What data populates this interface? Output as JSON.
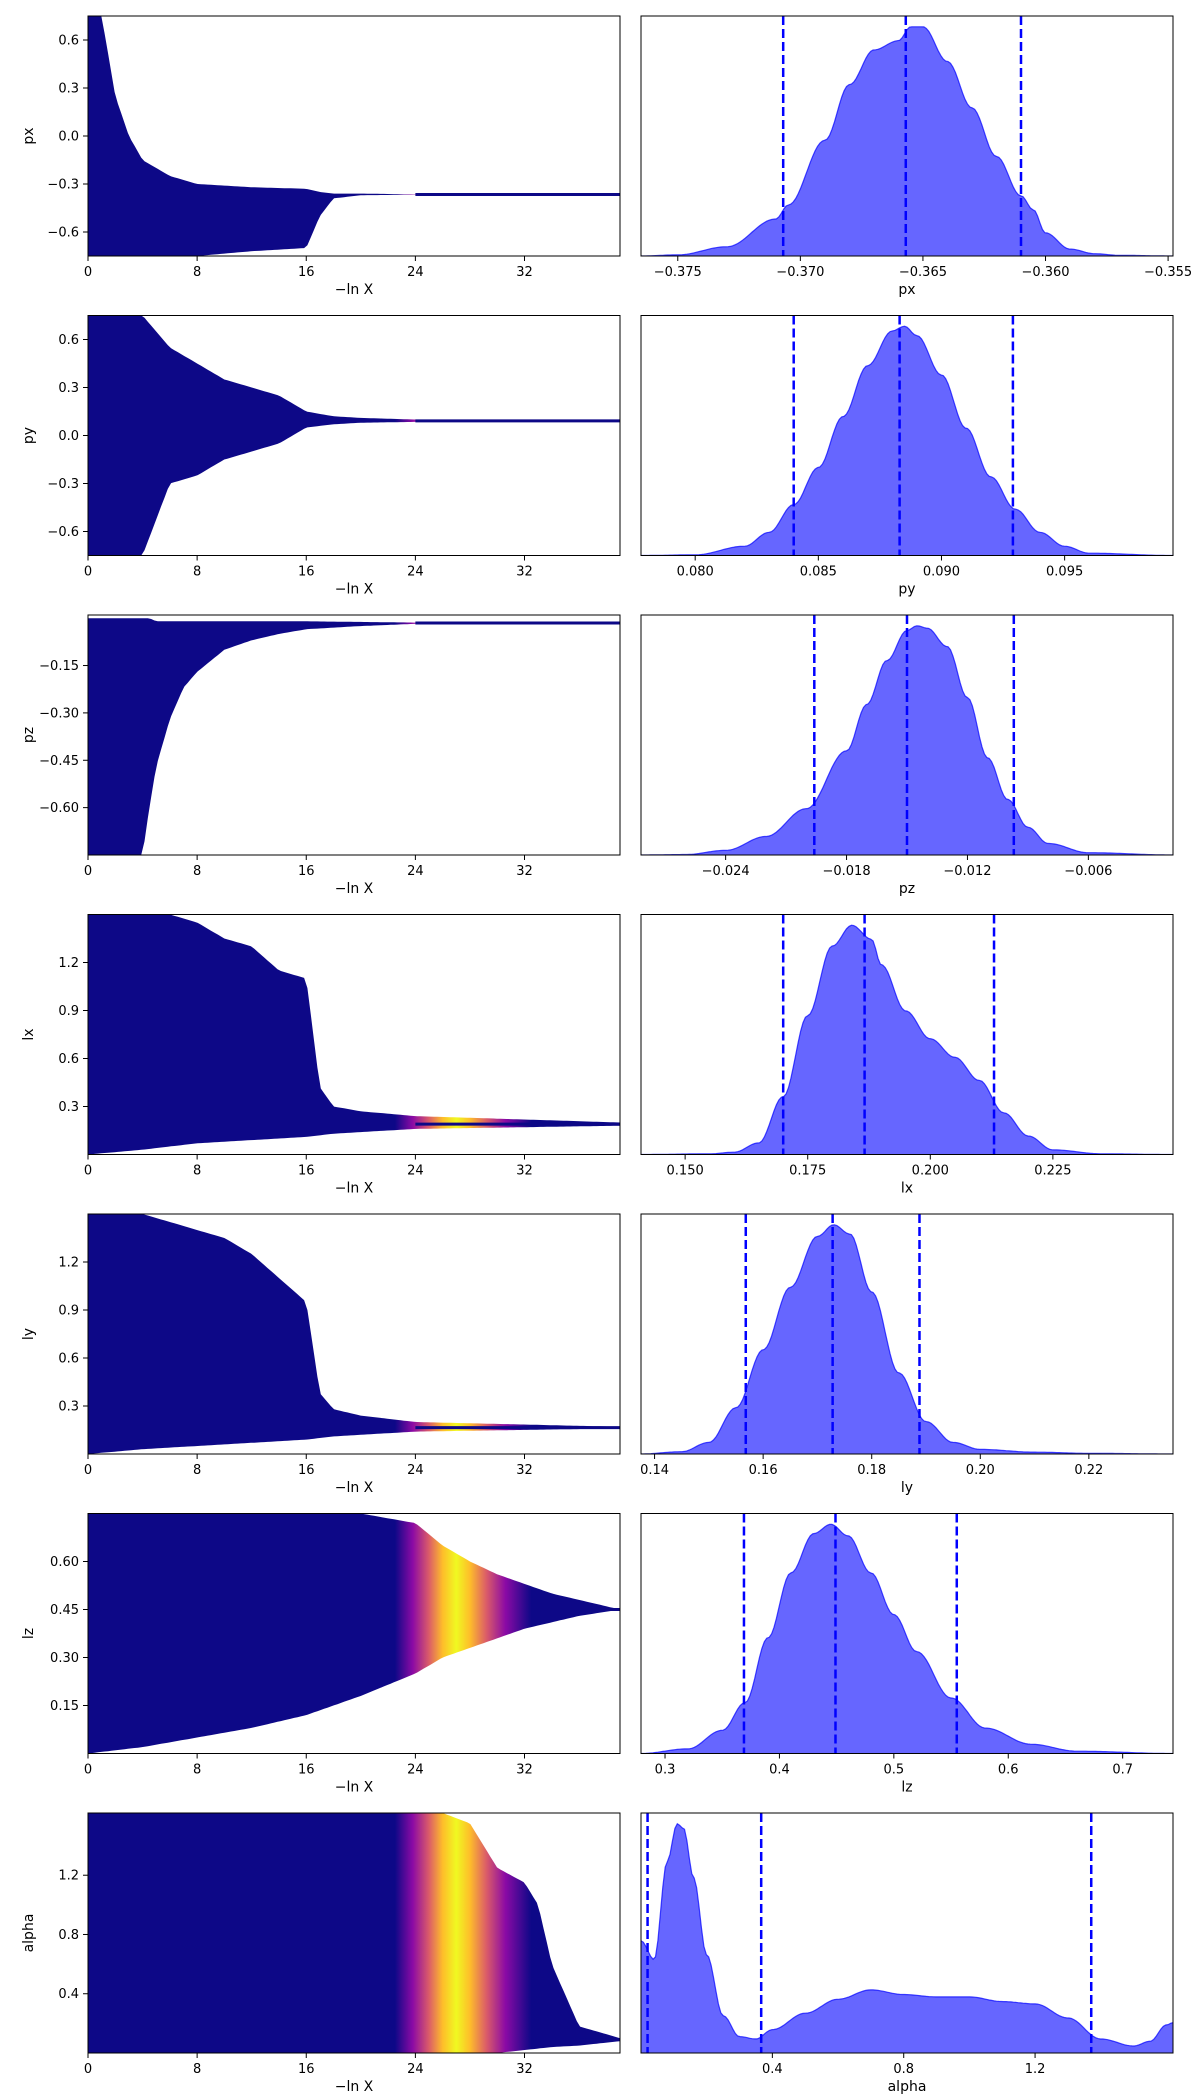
{
  "figure": {
    "background": "#ffffff",
    "trace_colormap": [
      "#0d0887",
      "#5302a3",
      "#8b0aa5",
      "#b83289",
      "#db5c68",
      "#f48849",
      "#febd2a",
      "#f0f921"
    ],
    "posterior_fill": "#0000ff",
    "posterior_fill_opacity": 0.6,
    "quantile_line_color": "#0000ff"
  },
  "chart_data": [
    {
      "type": "scatter",
      "param": "px",
      "xlabel": "−ln X",
      "ylabel": "px",
      "xlim": [
        0,
        39
      ],
      "ylim": [
        -0.75,
        0.75
      ],
      "xticks": [
        0,
        8,
        16,
        24,
        32
      ],
      "xtick_labels": [
        "0",
        "8",
        "16",
        "24",
        "32"
      ],
      "yticks": [
        0.6,
        0.3,
        0.0,
        -0.3,
        -0.6
      ],
      "ytick_labels": [
        "0.6",
        "0.3",
        "0.0",
        "−0.3",
        "−0.6"
      ],
      "envelope": {
        "x": [
          0,
          1,
          1.5,
          2,
          3,
          4,
          6,
          8,
          12,
          16,
          17,
          18,
          20,
          24,
          39
        ],
        "upper": [
          0.75,
          0.75,
          0.5,
          0.25,
          0.0,
          -0.15,
          -0.25,
          -0.3,
          -0.32,
          -0.33,
          -0.35,
          -0.36,
          -0.36,
          -0.365,
          -0.365
        ],
        "lower": [
          -0.75,
          -0.75,
          -0.75,
          -0.75,
          -0.75,
          -0.75,
          -0.75,
          -0.75,
          -0.72,
          -0.7,
          -0.5,
          -0.39,
          -0.37,
          -0.367,
          -0.366
        ]
      },
      "peak_x": 27
    },
    {
      "type": "area",
      "param": "px",
      "xlabel": "px",
      "xlim": [
        -0.3765,
        -0.3548
      ],
      "xticks": [
        -0.375,
        -0.37,
        -0.365,
        -0.36,
        -0.355
      ],
      "xtick_labels": [
        "−0.375",
        "−0.370",
        "−0.365",
        "−0.360",
        "−0.355"
      ],
      "density": {
        "x": [
          -0.3765,
          -0.375,
          -0.373,
          -0.371,
          -0.3705,
          -0.369,
          -0.368,
          -0.367,
          -0.366,
          -0.3655,
          -0.365,
          -0.364,
          -0.363,
          -0.362,
          -0.361,
          -0.3605,
          -0.36,
          -0.359,
          -0.358,
          -0.357,
          -0.3548
        ],
        "y": [
          0.0,
          0.005,
          0.04,
          0.16,
          0.22,
          0.5,
          0.74,
          0.89,
          0.93,
          0.99,
          0.99,
          0.84,
          0.64,
          0.43,
          0.26,
          0.2,
          0.1,
          0.03,
          0.01,
          0.003,
          0.0
        ]
      },
      "quantiles": [
        -0.3707,
        -0.3657,
        -0.361
      ]
    },
    {
      "type": "scatter",
      "param": "py",
      "xlabel": "−ln X",
      "ylabel": "py",
      "xlim": [
        0,
        39
      ],
      "ylim": [
        -0.75,
        0.75
      ],
      "xticks": [
        0,
        8,
        16,
        24,
        32
      ],
      "xtick_labels": [
        "0",
        "8",
        "16",
        "24",
        "32"
      ],
      "yticks": [
        0.6,
        0.3,
        0.0,
        -0.3,
        -0.6
      ],
      "ytick_labels": [
        "0.6",
        "0.3",
        "0.0",
        "−0.3",
        "−0.6"
      ],
      "envelope": {
        "x": [
          0,
          2,
          4,
          6,
          8,
          10,
          12,
          14,
          16,
          18,
          20,
          24,
          39
        ],
        "upper": [
          0.75,
          0.75,
          0.75,
          0.55,
          0.45,
          0.35,
          0.3,
          0.25,
          0.15,
          0.12,
          0.11,
          0.1,
          0.095
        ],
        "lower": [
          -0.75,
          -0.75,
          -0.75,
          -0.3,
          -0.25,
          -0.15,
          -0.1,
          -0.05,
          0.05,
          0.07,
          0.08,
          0.085,
          0.088
        ]
      },
      "peak_x": 27
    },
    {
      "type": "area",
      "param": "py",
      "xlabel": "py",
      "xlim": [
        0.0778,
        0.0994
      ],
      "xticks": [
        0.08,
        0.085,
        0.09,
        0.095
      ],
      "xtick_labels": [
        "0.080",
        "0.085",
        "0.090",
        "0.095"
      ],
      "density": {
        "x": [
          0.0778,
          0.08,
          0.082,
          0.083,
          0.084,
          0.085,
          0.086,
          0.087,
          0.088,
          0.0885,
          0.089,
          0.09,
          0.091,
          0.092,
          0.093,
          0.094,
          0.095,
          0.096,
          0.0994
        ],
        "y": [
          0.0,
          0.003,
          0.04,
          0.1,
          0.22,
          0.38,
          0.6,
          0.82,
          0.97,
          0.99,
          0.95,
          0.78,
          0.55,
          0.34,
          0.2,
          0.1,
          0.04,
          0.01,
          0.0
        ]
      },
      "quantiles": [
        0.084,
        0.0883,
        0.0929
      ]
    },
    {
      "type": "scatter",
      "param": "pz",
      "xlabel": "−ln X",
      "ylabel": "pz",
      "xlim": [
        0,
        39
      ],
      "ylim": [
        -0.75,
        0.01
      ],
      "xticks": [
        0,
        8,
        16,
        24,
        32
      ],
      "xtick_labels": [
        "0",
        "8",
        "16",
        "24",
        "32"
      ],
      "yticks": [
        -0.15,
        -0.3,
        -0.45,
        -0.6
      ],
      "ytick_labels": [
        "−0.15",
        "−0.30",
        "−0.45",
        "−0.60"
      ],
      "envelope": {
        "x": [
          0,
          4,
          4.5,
          5,
          6,
          7,
          8,
          10,
          12,
          14,
          16,
          20,
          24,
          39
        ],
        "upper": [
          0.0,
          0.0,
          0.0,
          -0.01,
          -0.01,
          -0.01,
          -0.01,
          -0.01,
          -0.01,
          -0.01,
          -0.01,
          -0.012,
          -0.014,
          -0.015
        ],
        "lower": [
          -0.75,
          -0.75,
          -0.6,
          -0.47,
          -0.32,
          -0.22,
          -0.17,
          -0.1,
          -0.07,
          -0.05,
          -0.035,
          -0.025,
          -0.018,
          -0.016
        ]
      },
      "peak_x": 27
    },
    {
      "type": "area",
      "param": "pz",
      "xlabel": "pz",
      "xlim": [
        -0.0282,
        -0.0018
      ],
      "xticks": [
        -0.024,
        -0.018,
        -0.012,
        -0.006
      ],
      "xtick_labels": [
        "−0.024",
        "−0.018",
        "−0.012",
        "−0.006"
      ],
      "density": {
        "x": [
          -0.0282,
          -0.026,
          -0.024,
          -0.022,
          -0.02,
          -0.018,
          -0.017,
          -0.016,
          -0.015,
          -0.0145,
          -0.014,
          -0.013,
          -0.012,
          -0.011,
          -0.01,
          -0.009,
          -0.008,
          -0.006,
          -0.0018
        ],
        "y": [
          0.0,
          0.002,
          0.02,
          0.08,
          0.2,
          0.45,
          0.65,
          0.84,
          0.97,
          0.99,
          0.98,
          0.9,
          0.68,
          0.42,
          0.24,
          0.12,
          0.05,
          0.01,
          0.0
        ]
      },
      "quantiles": [
        -0.0196,
        -0.015,
        -0.0097
      ]
    },
    {
      "type": "scatter",
      "param": "lx",
      "xlabel": "−ln X",
      "ylabel": "lx",
      "xlim": [
        0,
        39
      ],
      "ylim": [
        0.0,
        1.5
      ],
      "xticks": [
        0,
        8,
        16,
        24,
        32
      ],
      "xtick_labels": [
        "0",
        "8",
        "16",
        "24",
        "32"
      ],
      "yticks": [
        1.2,
        0.9,
        0.6,
        0.3
      ],
      "ytick_labels": [
        "1.2",
        "0.9",
        "0.6",
        "0.3"
      ],
      "envelope": {
        "x": [
          0,
          4,
          6,
          8,
          10,
          12,
          14,
          16,
          17,
          18,
          20,
          24,
          39
        ],
        "upper": [
          1.5,
          1.5,
          1.5,
          1.45,
          1.35,
          1.3,
          1.15,
          1.1,
          0.42,
          0.3,
          0.27,
          0.24,
          0.2
        ],
        "lower": [
          0.0,
          0.03,
          0.05,
          0.07,
          0.08,
          0.09,
          0.1,
          0.11,
          0.12,
          0.13,
          0.14,
          0.16,
          0.18
        ]
      },
      "peak_x": 27
    },
    {
      "type": "area",
      "param": "lx",
      "xlabel": "lx",
      "xlim": [
        0.141,
        0.2495
      ],
      "xticks": [
        0.15,
        0.175,
        0.2,
        0.225
      ],
      "xtick_labels": [
        "0.150",
        "0.175",
        "0.200",
        "0.225"
      ],
      "density": {
        "x": [
          0.141,
          0.155,
          0.16,
          0.165,
          0.17,
          0.175,
          0.18,
          0.184,
          0.188,
          0.19,
          0.195,
          0.2,
          0.205,
          0.21,
          0.215,
          0.22,
          0.225,
          0.235,
          0.2495
        ],
        "y": [
          0.0,
          0.003,
          0.01,
          0.05,
          0.25,
          0.6,
          0.9,
          0.99,
          0.93,
          0.82,
          0.62,
          0.5,
          0.42,
          0.32,
          0.18,
          0.08,
          0.02,
          0.003,
          0.0
        ]
      },
      "quantiles": [
        0.17,
        0.1866,
        0.213
      ]
    },
    {
      "type": "scatter",
      "param": "ly",
      "xlabel": "−ln X",
      "ylabel": "ly",
      "xlim": [
        0,
        39
      ],
      "ylim": [
        0.0,
        1.5
      ],
      "xticks": [
        0,
        8,
        16,
        24,
        32
      ],
      "xtick_labels": [
        "0",
        "8",
        "16",
        "24",
        "32"
      ],
      "yticks": [
        1.2,
        0.9,
        0.6,
        0.3
      ],
      "ytick_labels": [
        "1.2",
        "0.9",
        "0.6",
        "0.3"
      ],
      "envelope": {
        "x": [
          0,
          4,
          6,
          8,
          10,
          12,
          14,
          16,
          17,
          18,
          20,
          24,
          39
        ],
        "upper": [
          1.5,
          1.5,
          1.45,
          1.4,
          1.35,
          1.25,
          1.1,
          0.95,
          0.38,
          0.28,
          0.24,
          0.2,
          0.17
        ],
        "lower": [
          0.0,
          0.03,
          0.04,
          0.05,
          0.06,
          0.07,
          0.08,
          0.09,
          0.1,
          0.11,
          0.12,
          0.14,
          0.16
        ]
      },
      "peak_x": 27
    },
    {
      "type": "area",
      "param": "ly",
      "xlabel": "ly",
      "xlim": [
        0.1375,
        0.2355
      ],
      "xticks": [
        0.14,
        0.16,
        0.18,
        0.2,
        0.22
      ],
      "xtick_labels": [
        "0.14",
        "0.16",
        "0.18",
        "0.20",
        "0.22"
      ],
      "density": {
        "x": [
          0.1375,
          0.145,
          0.15,
          0.155,
          0.16,
          0.165,
          0.17,
          0.173,
          0.176,
          0.18,
          0.185,
          0.19,
          0.195,
          0.2,
          0.21,
          0.22,
          0.2355
        ],
        "y": [
          0.0,
          0.01,
          0.05,
          0.2,
          0.45,
          0.72,
          0.94,
          0.99,
          0.95,
          0.7,
          0.35,
          0.14,
          0.05,
          0.02,
          0.008,
          0.003,
          0.0
        ]
      },
      "quantiles": [
        0.1568,
        0.1728,
        0.1888
      ]
    },
    {
      "type": "scatter",
      "param": "lz",
      "xlabel": "−ln X",
      "ylabel": "lz",
      "xlim": [
        0,
        39
      ],
      "ylim": [
        0.0,
        0.75
      ],
      "xticks": [
        0,
        8,
        16,
        24,
        32
      ],
      "xtick_labels": [
        "0",
        "8",
        "16",
        "24",
        "32"
      ],
      "yticks": [
        0.6,
        0.45,
        0.3,
        0.15
      ],
      "ytick_labels": [
        "0.60",
        "0.45",
        "0.30",
        "0.15"
      ],
      "envelope": {
        "x": [
          0,
          4,
          8,
          12,
          16,
          20,
          24,
          26,
          28,
          30,
          32,
          34,
          36,
          39
        ],
        "upper": [
          0.75,
          0.75,
          0.75,
          0.75,
          0.75,
          0.75,
          0.72,
          0.65,
          0.6,
          0.56,
          0.53,
          0.5,
          0.48,
          0.45
        ],
        "lower": [
          0.0,
          0.02,
          0.05,
          0.08,
          0.12,
          0.18,
          0.25,
          0.3,
          0.33,
          0.36,
          0.39,
          0.41,
          0.43,
          0.45
        ]
      },
      "peak_x": 27
    },
    {
      "type": "area",
      "param": "lz",
      "xlabel": "lz",
      "xlim": [
        0.279,
        0.744
      ],
      "xticks": [
        0.3,
        0.4,
        0.5,
        0.6,
        0.7
      ],
      "xtick_labels": [
        "0.3",
        "0.4",
        "0.5",
        "0.6",
        "0.7"
      ],
      "density": {
        "x": [
          0.279,
          0.32,
          0.35,
          0.37,
          0.39,
          0.41,
          0.43,
          0.445,
          0.46,
          0.48,
          0.5,
          0.52,
          0.55,
          0.58,
          0.62,
          0.66,
          0.744
        ],
        "y": [
          0.0,
          0.02,
          0.1,
          0.22,
          0.5,
          0.78,
          0.95,
          0.99,
          0.94,
          0.78,
          0.6,
          0.44,
          0.24,
          0.11,
          0.04,
          0.01,
          0.0
        ]
      },
      "quantiles": [
        0.369,
        0.449,
        0.555
      ]
    },
    {
      "type": "scatter",
      "param": "alpha",
      "xlabel": "−ln X",
      "ylabel": "alpha",
      "xlim": [
        0,
        39
      ],
      "ylim": [
        0.0,
        1.62
      ],
      "xticks": [
        0,
        8,
        16,
        24,
        32
      ],
      "xtick_labels": [
        "0",
        "8",
        "16",
        "24",
        "32"
      ],
      "yticks": [
        1.2,
        0.8,
        0.4
      ],
      "ytick_labels": [
        "1.2",
        "0.8",
        "0.4"
      ],
      "envelope": {
        "x": [
          0,
          4,
          8,
          12,
          16,
          20,
          24,
          26,
          28,
          30,
          32,
          33,
          34,
          36,
          39
        ],
        "upper": [
          1.62,
          1.62,
          1.62,
          1.62,
          1.62,
          1.62,
          1.62,
          1.62,
          1.55,
          1.25,
          1.15,
          1.0,
          0.6,
          0.18,
          0.1
        ],
        "lower": [
          0.0,
          0.0,
          0.0,
          0.0,
          0.0,
          0.0,
          0.0,
          0.0,
          0.0,
          0.0,
          0.02,
          0.03,
          0.04,
          0.05,
          0.08
        ]
      },
      "peak_x": 27
    },
    {
      "type": "area",
      "param": "alpha",
      "xlabel": "alpha",
      "xlim": [
        0.0,
        1.62
      ],
      "xticks": [
        0.4,
        0.8,
        1.2
      ],
      "xtick_labels": [
        "0.4",
        "0.8",
        "1.2"
      ],
      "density": {
        "x": [
          0.0,
          0.04,
          0.08,
          0.11,
          0.13,
          0.16,
          0.2,
          0.25,
          0.3,
          0.35,
          0.4,
          0.5,
          0.6,
          0.7,
          0.8,
          0.9,
          1.0,
          1.1,
          1.2,
          1.3,
          1.4,
          1.5,
          1.55,
          1.6,
          1.62
        ],
        "y": [
          0.48,
          0.4,
          0.82,
          0.98,
          0.96,
          0.75,
          0.42,
          0.16,
          0.07,
          0.06,
          0.1,
          0.17,
          0.23,
          0.27,
          0.25,
          0.24,
          0.24,
          0.22,
          0.21,
          0.15,
          0.06,
          0.03,
          0.05,
          0.12,
          0.13
        ]
      },
      "quantiles": [
        0.02,
        0.366,
        1.371
      ]
    }
  ]
}
